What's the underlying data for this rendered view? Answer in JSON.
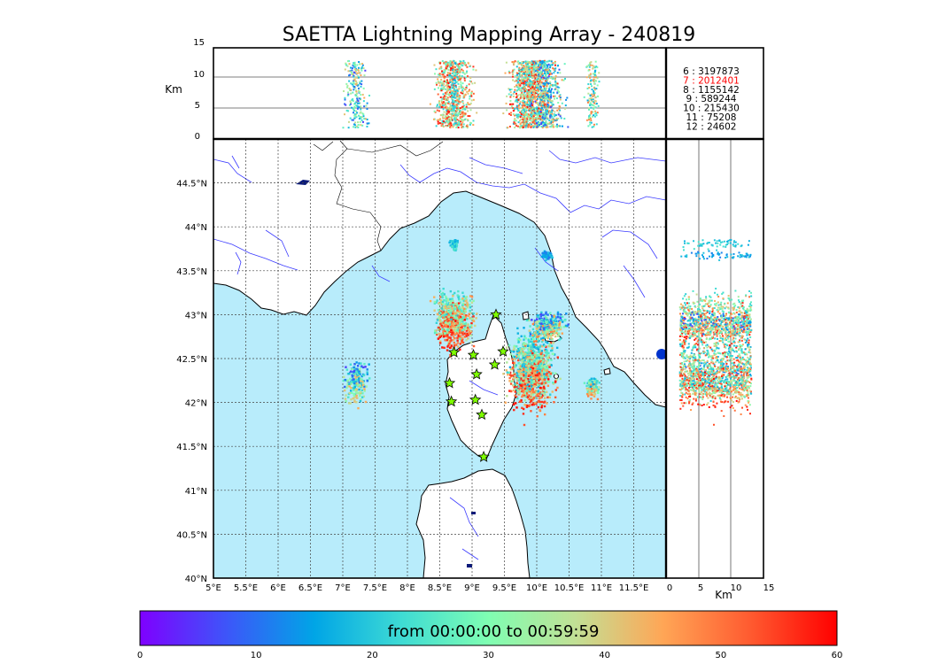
{
  "title": "SAETTA Lightning Mapping Array - 240819",
  "top_panel": {
    "ylabel": "Km",
    "yticks": [
      "0",
      "5",
      "10",
      "15"
    ],
    "legend": [
      {
        "text": "6  :  3197873",
        "color": "#000000"
      },
      {
        "text": "7  :  2012401",
        "color": "#ff0000"
      },
      {
        "text": "8  :  1155142",
        "color": "#000000"
      },
      {
        "text": "9  :   589244",
        "color": "#000000"
      },
      {
        "text": "10  :   215430",
        "color": "#000000"
      },
      {
        "text": "11  :    75208",
        "color": "#000000"
      },
      {
        "text": "12  :    24602",
        "color": "#000000"
      }
    ]
  },
  "map": {
    "lon_ticks": [
      "5°E",
      "5.5°E",
      "6°E",
      "6.5°E",
      "7°E",
      "7.5°E",
      "8°E",
      "8.5°E",
      "9°E",
      "9.5°E",
      "10°E",
      "10.5°E",
      "11°E",
      "11.5°E"
    ],
    "lat_ticks": [
      "40°N",
      "40.5°N",
      "41°N",
      "41.5°N",
      "42°N",
      "42.5°N",
      "43°N",
      "43.5°N",
      "44°N",
      "44.5°N"
    ],
    "sea_color": "#b8ecfb",
    "land_color": "#ffffff",
    "station_color": "#7fff00",
    "stations": [
      {
        "lon": 8.72,
        "lat": 42.57
      },
      {
        "lon": 9.02,
        "lat": 42.54
      },
      {
        "lon": 9.48,
        "lat": 42.58
      },
      {
        "lon": 9.35,
        "lat": 42.43
      },
      {
        "lon": 9.07,
        "lat": 42.32
      },
      {
        "lon": 8.65,
        "lat": 42.22
      },
      {
        "lon": 8.68,
        "lat": 42.01
      },
      {
        "lon": 9.05,
        "lat": 42.03
      },
      {
        "lon": 9.15,
        "lat": 41.86
      },
      {
        "lon": 9.37,
        "lat": 43.0
      },
      {
        "lon": 9.18,
        "lat": 41.38
      }
    ]
  },
  "side_panel": {
    "xlabel": "Km",
    "xticks": [
      "0",
      "5",
      "10",
      "15"
    ]
  },
  "colorbar": {
    "label": "from 00:00:00 to 00:59:59",
    "ticks": [
      "0",
      "10",
      "20",
      "30",
      "40",
      "50",
      "60"
    ],
    "range": [
      0,
      60
    ],
    "colormap": [
      "#7f00ff",
      "#3d56f9",
      "#00a5e6",
      "#3edbd4",
      "#7ffeb2",
      "#c2e095",
      "#ffa656",
      "#ff5b30",
      "#ff0000"
    ]
  },
  "chart_data": {
    "type": "scatter",
    "title": "SAETTA Lightning Mapping Array - 240819",
    "xlabel": "",
    "ylabel": "",
    "xlim": [
      5,
      12
    ],
    "ylim": [
      40,
      45
    ],
    "color_variable": "time (minutes)",
    "clusters": [
      {
        "lon": 7.2,
        "lat": 42.25,
        "time_range": [
          5,
          45
        ]
      },
      {
        "lon": 8.7,
        "lat": 42.95,
        "time_range": [
          20,
          60
        ]
      },
      {
        "lon": 8.7,
        "lat": 43.82,
        "time_range": [
          15,
          25
        ]
      },
      {
        "lon": 9.9,
        "lat": 42.35,
        "time_range": [
          15,
          60
        ]
      },
      {
        "lon": 10.15,
        "lat": 43.68,
        "time_range": [
          10,
          20
        ]
      },
      {
        "lon": 10.15,
        "lat": 42.88,
        "time_range": [
          5,
          50
        ]
      },
      {
        "lon": 10.85,
        "lat": 42.18,
        "time_range": [
          15,
          50
        ]
      }
    ]
  }
}
